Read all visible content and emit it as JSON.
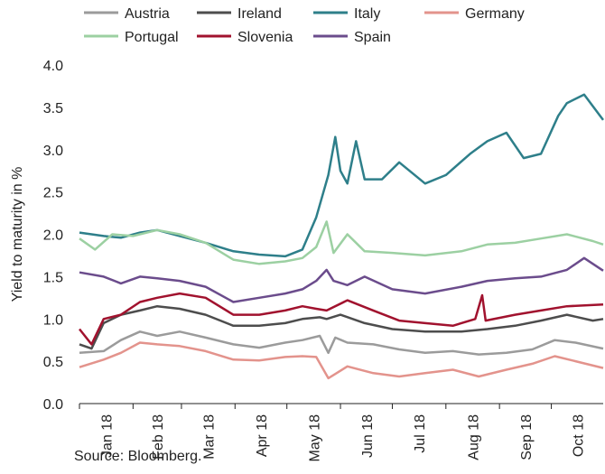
{
  "chart_data": {
    "type": "line",
    "ylabel": "Yield to maturity in %",
    "ylim": [
      0.0,
      4.0
    ],
    "yticks": [
      "0.0",
      "0.5",
      "1.0",
      "1.5",
      "2.0",
      "2.5",
      "3.0",
      "3.5",
      "4.0"
    ],
    "x_range": [
      "2018-01-01",
      "2018-10-31"
    ],
    "x_tick_labels": [
      "Jan 18",
      "Feb 18",
      "Mar 18",
      "Apr 18",
      "May 18",
      "Jun 18",
      "Jul 18",
      "Aug 18",
      "Sep 18",
      "Oct 18"
    ],
    "x_tick_dates": [
      "2018-01-01",
      "2018-02-01",
      "2018-03-01",
      "2018-04-01",
      "2018-05-01",
      "2018-06-01",
      "2018-07-01",
      "2018-08-01",
      "2018-09-01",
      "2018-10-01"
    ],
    "grid": false,
    "legend_position": "top",
    "series": [
      {
        "name": "Austria",
        "color": "#9b9b9b",
        "points": [
          [
            "2018-01-01",
            0.6
          ],
          [
            "2018-01-15",
            0.62
          ],
          [
            "2018-01-25",
            0.75
          ],
          [
            "2018-02-05",
            0.85
          ],
          [
            "2018-02-15",
            0.8
          ],
          [
            "2018-02-28",
            0.85
          ],
          [
            "2018-03-15",
            0.78
          ],
          [
            "2018-03-31",
            0.7
          ],
          [
            "2018-04-15",
            0.66
          ],
          [
            "2018-04-30",
            0.72
          ],
          [
            "2018-05-10",
            0.75
          ],
          [
            "2018-05-20",
            0.8
          ],
          [
            "2018-05-25",
            0.6
          ],
          [
            "2018-05-29",
            0.78
          ],
          [
            "2018-06-05",
            0.72
          ],
          [
            "2018-06-20",
            0.7
          ],
          [
            "2018-07-05",
            0.64
          ],
          [
            "2018-07-20",
            0.6
          ],
          [
            "2018-08-05",
            0.62
          ],
          [
            "2018-08-20",
            0.58
          ],
          [
            "2018-09-05",
            0.6
          ],
          [
            "2018-09-20",
            0.64
          ],
          [
            "2018-10-03",
            0.75
          ],
          [
            "2018-10-15",
            0.72
          ],
          [
            "2018-10-31",
            0.65
          ]
        ]
      },
      {
        "name": "Ireland",
        "color": "#4d4d4d",
        "points": [
          [
            "2018-01-01",
            0.7
          ],
          [
            "2018-01-08",
            0.65
          ],
          [
            "2018-01-15",
            0.95
          ],
          [
            "2018-01-25",
            1.05
          ],
          [
            "2018-02-05",
            1.1
          ],
          [
            "2018-02-15",
            1.15
          ],
          [
            "2018-02-28",
            1.12
          ],
          [
            "2018-03-15",
            1.05
          ],
          [
            "2018-03-31",
            0.92
          ],
          [
            "2018-04-15",
            0.92
          ],
          [
            "2018-04-30",
            0.95
          ],
          [
            "2018-05-10",
            1.0
          ],
          [
            "2018-05-20",
            1.02
          ],
          [
            "2018-05-24",
            1.0
          ],
          [
            "2018-06-01",
            1.05
          ],
          [
            "2018-06-15",
            0.95
          ],
          [
            "2018-07-01",
            0.88
          ],
          [
            "2018-07-20",
            0.85
          ],
          [
            "2018-08-10",
            0.85
          ],
          [
            "2018-08-25",
            0.88
          ],
          [
            "2018-09-10",
            0.92
          ],
          [
            "2018-09-25",
            0.98
          ],
          [
            "2018-10-10",
            1.05
          ],
          [
            "2018-10-25",
            0.98
          ],
          [
            "2018-10-31",
            1.0
          ]
        ]
      },
      {
        "name": "Italy",
        "color": "#2e7f8a",
        "points": [
          [
            "2018-01-01",
            2.02
          ],
          [
            "2018-01-15",
            1.98
          ],
          [
            "2018-01-25",
            1.96
          ],
          [
            "2018-02-05",
            2.02
          ],
          [
            "2018-02-15",
            2.05
          ],
          [
            "2018-02-28",
            1.98
          ],
          [
            "2018-03-15",
            1.9
          ],
          [
            "2018-03-31",
            1.8
          ],
          [
            "2018-04-15",
            1.76
          ],
          [
            "2018-04-30",
            1.74
          ],
          [
            "2018-05-10",
            1.82
          ],
          [
            "2018-05-18",
            2.2
          ],
          [
            "2018-05-25",
            2.7
          ],
          [
            "2018-05-29",
            3.15
          ],
          [
            "2018-06-01",
            2.75
          ],
          [
            "2018-06-05",
            2.6
          ],
          [
            "2018-06-10",
            3.1
          ],
          [
            "2018-06-15",
            2.65
          ],
          [
            "2018-06-25",
            2.65
          ],
          [
            "2018-07-05",
            2.85
          ],
          [
            "2018-07-20",
            2.6
          ],
          [
            "2018-08-01",
            2.7
          ],
          [
            "2018-08-15",
            2.95
          ],
          [
            "2018-08-25",
            3.1
          ],
          [
            "2018-09-05",
            3.2
          ],
          [
            "2018-09-15",
            2.9
          ],
          [
            "2018-09-25",
            2.95
          ],
          [
            "2018-10-05",
            3.4
          ],
          [
            "2018-10-10",
            3.55
          ],
          [
            "2018-10-20",
            3.65
          ],
          [
            "2018-10-31",
            3.35
          ]
        ]
      },
      {
        "name": "Germany",
        "color": "#e3938c",
        "points": [
          [
            "2018-01-01",
            0.43
          ],
          [
            "2018-01-15",
            0.52
          ],
          [
            "2018-01-25",
            0.6
          ],
          [
            "2018-02-05",
            0.72
          ],
          [
            "2018-02-15",
            0.7
          ],
          [
            "2018-02-28",
            0.68
          ],
          [
            "2018-03-15",
            0.62
          ],
          [
            "2018-03-31",
            0.52
          ],
          [
            "2018-04-15",
            0.51
          ],
          [
            "2018-04-30",
            0.55
          ],
          [
            "2018-05-10",
            0.56
          ],
          [
            "2018-05-18",
            0.55
          ],
          [
            "2018-05-25",
            0.3
          ],
          [
            "2018-05-29",
            0.35
          ],
          [
            "2018-06-05",
            0.44
          ],
          [
            "2018-06-20",
            0.36
          ],
          [
            "2018-07-05",
            0.32
          ],
          [
            "2018-07-20",
            0.36
          ],
          [
            "2018-08-05",
            0.4
          ],
          [
            "2018-08-20",
            0.32
          ],
          [
            "2018-09-05",
            0.4
          ],
          [
            "2018-09-20",
            0.47
          ],
          [
            "2018-10-03",
            0.56
          ],
          [
            "2018-10-15",
            0.5
          ],
          [
            "2018-10-31",
            0.42
          ]
        ]
      },
      {
        "name": "Portugal",
        "color": "#9cd0a2",
        "points": [
          [
            "2018-01-01",
            1.95
          ],
          [
            "2018-01-10",
            1.82
          ],
          [
            "2018-01-20",
            2.0
          ],
          [
            "2018-02-01",
            1.98
          ],
          [
            "2018-02-15",
            2.05
          ],
          [
            "2018-02-28",
            2.0
          ],
          [
            "2018-03-15",
            1.9
          ],
          [
            "2018-03-31",
            1.7
          ],
          [
            "2018-04-15",
            1.65
          ],
          [
            "2018-04-30",
            1.68
          ],
          [
            "2018-05-10",
            1.72
          ],
          [
            "2018-05-18",
            1.85
          ],
          [
            "2018-05-24",
            2.15
          ],
          [
            "2018-05-28",
            1.78
          ],
          [
            "2018-06-05",
            2.0
          ],
          [
            "2018-06-15",
            1.8
          ],
          [
            "2018-07-01",
            1.78
          ],
          [
            "2018-07-20",
            1.75
          ],
          [
            "2018-08-10",
            1.8
          ],
          [
            "2018-08-25",
            1.88
          ],
          [
            "2018-09-10",
            1.9
          ],
          [
            "2018-09-25",
            1.95
          ],
          [
            "2018-10-10",
            2.0
          ],
          [
            "2018-10-25",
            1.92
          ],
          [
            "2018-10-31",
            1.88
          ]
        ]
      },
      {
        "name": "Slovenia",
        "color": "#a1122e",
        "points": [
          [
            "2018-01-01",
            0.88
          ],
          [
            "2018-01-08",
            0.7
          ],
          [
            "2018-01-15",
            1.0
          ],
          [
            "2018-01-25",
            1.05
          ],
          [
            "2018-02-05",
            1.2
          ],
          [
            "2018-02-15",
            1.25
          ],
          [
            "2018-02-28",
            1.3
          ],
          [
            "2018-03-15",
            1.25
          ],
          [
            "2018-03-31",
            1.05
          ],
          [
            "2018-04-15",
            1.05
          ],
          [
            "2018-04-30",
            1.1
          ],
          [
            "2018-05-10",
            1.15
          ],
          [
            "2018-05-18",
            1.12
          ],
          [
            "2018-05-24",
            1.1
          ],
          [
            "2018-06-05",
            1.22
          ],
          [
            "2018-06-20",
            1.1
          ],
          [
            "2018-07-05",
            0.98
          ],
          [
            "2018-07-20",
            0.95
          ],
          [
            "2018-08-05",
            0.92
          ],
          [
            "2018-08-18",
            1.0
          ],
          [
            "2018-08-22",
            1.28
          ],
          [
            "2018-08-24",
            0.98
          ],
          [
            "2018-09-10",
            1.05
          ],
          [
            "2018-09-25",
            1.1
          ],
          [
            "2018-10-10",
            1.15
          ],
          [
            "2018-10-31",
            1.17
          ]
        ]
      },
      {
        "name": "Spain",
        "color": "#6b4c8c",
        "points": [
          [
            "2018-01-01",
            1.55
          ],
          [
            "2018-01-15",
            1.5
          ],
          [
            "2018-01-25",
            1.42
          ],
          [
            "2018-02-05",
            1.5
          ],
          [
            "2018-02-15",
            1.48
          ],
          [
            "2018-02-28",
            1.45
          ],
          [
            "2018-03-15",
            1.38
          ],
          [
            "2018-03-31",
            1.2
          ],
          [
            "2018-04-15",
            1.25
          ],
          [
            "2018-04-30",
            1.3
          ],
          [
            "2018-05-10",
            1.35
          ],
          [
            "2018-05-18",
            1.45
          ],
          [
            "2018-05-24",
            1.58
          ],
          [
            "2018-05-28",
            1.45
          ],
          [
            "2018-06-05",
            1.4
          ],
          [
            "2018-06-15",
            1.5
          ],
          [
            "2018-07-01",
            1.35
          ],
          [
            "2018-07-20",
            1.3
          ],
          [
            "2018-08-10",
            1.38
          ],
          [
            "2018-08-25",
            1.45
          ],
          [
            "2018-09-10",
            1.48
          ],
          [
            "2018-09-25",
            1.5
          ],
          [
            "2018-10-10",
            1.58
          ],
          [
            "2018-10-20",
            1.72
          ],
          [
            "2018-10-31",
            1.57
          ]
        ]
      }
    ]
  },
  "source_note": "Source: Bloomberg."
}
